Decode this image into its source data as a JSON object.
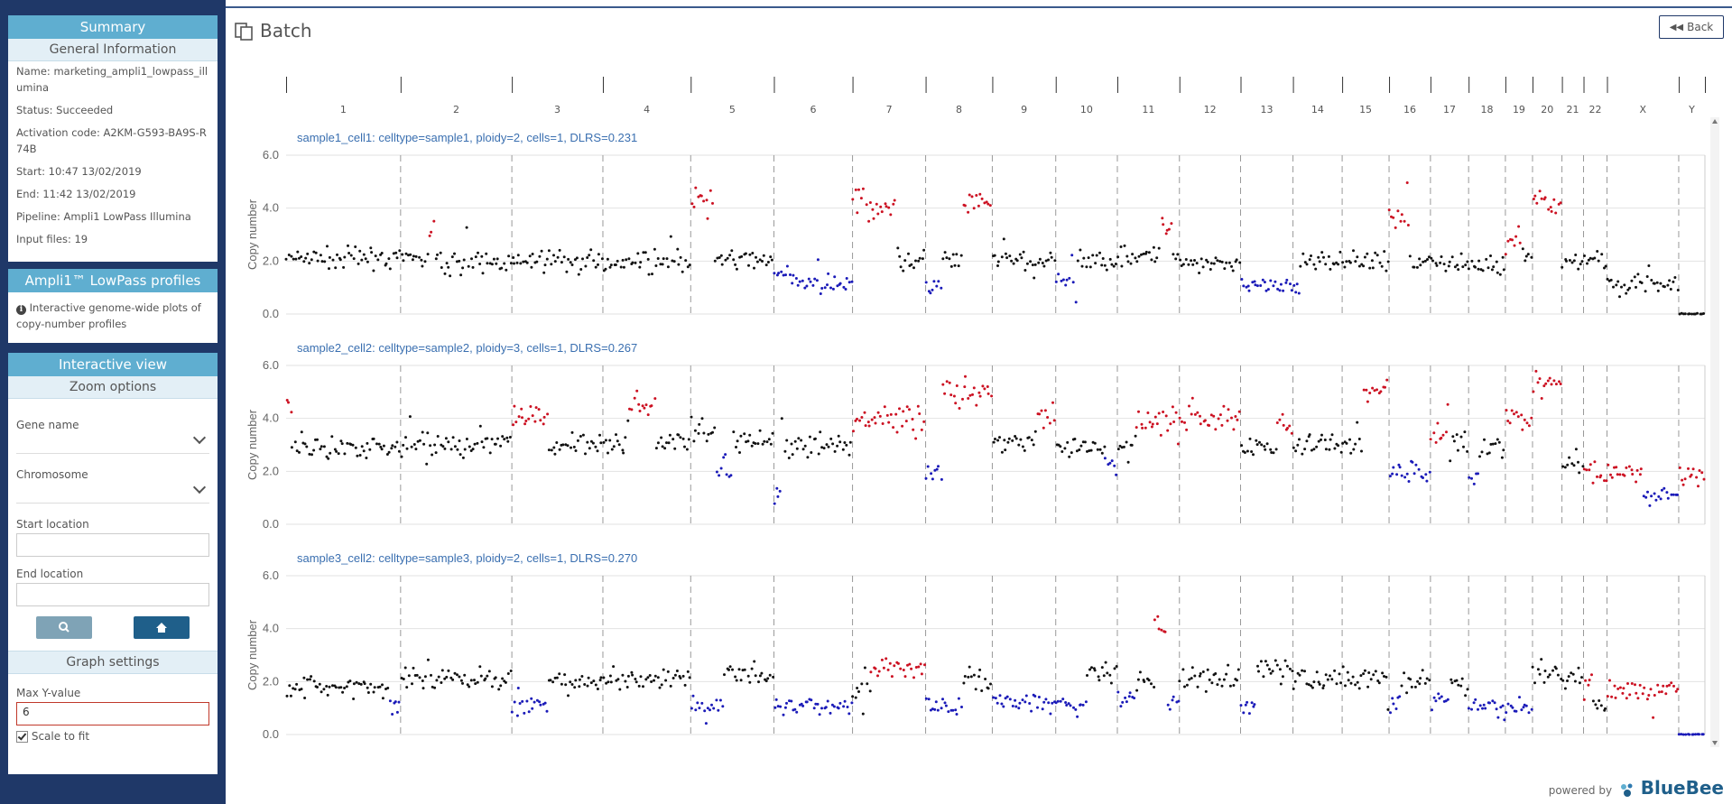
{
  "summary": {
    "title": "Summary",
    "general_title": "General Information",
    "items": [
      "Name: marketing_ampli1_lowpass_illumina",
      "Status: Succeeded",
      "Activation code: A2KM-G593-BA9S-R74B",
      "Start: 10:47 13/02/2019",
      "End: 11:42 13/02/2019",
      "Pipeline: Ampli1 LowPass Illumina",
      "Input files: 19"
    ]
  },
  "profiles": {
    "title": "Ampli1™ LowPass profiles",
    "desc": "Interactive genome-wide plots of copy-number profiles"
  },
  "interactive": {
    "title": "Interactive view",
    "zoom_title": "Zoom options",
    "gene_label": "Gene name",
    "chrom_label": "Chromosome",
    "start_label": "Start location",
    "end_label": "End location",
    "graph_title": "Graph settings",
    "maxy_label": "Max Y-value",
    "maxy_value": "6",
    "scale_label": "Scale to fit",
    "scale_checked": true
  },
  "header": {
    "title": "Batch",
    "back_label": "Back"
  },
  "footer": {
    "powered": "powered by",
    "brand": "BlueBee"
  },
  "colors": {
    "sidebar": "#1f3868",
    "panel_header": "#5faed0",
    "gain": "#cc1122",
    "loss": "#1a1ab8",
    "neutral": "#111111",
    "title_blue": "#3a6fb0"
  },
  "chart_data": {
    "type": "scatter",
    "chromosomes": [
      "1",
      "2",
      "3",
      "4",
      "5",
      "6",
      "7",
      "8",
      "9",
      "10",
      "11",
      "12",
      "13",
      "14",
      "15",
      "16",
      "17",
      "18",
      "19",
      "20",
      "21",
      "22",
      "X",
      "Y"
    ],
    "ylabel": "Copy number",
    "yticks": [
      "0.0",
      "2.0",
      "4.0",
      "6.0"
    ],
    "ylim": [
      0,
      6
    ],
    "panels": [
      {
        "title": "sample1_cell1: celltype=sample1, ploidy=2, cells=1, DLRS=0.231",
        "segments": [
          [
            "1",
            0,
            1,
            2.1,
            0
          ],
          [
            "2",
            0,
            0.25,
            2.1,
            0
          ],
          [
            "2",
            0.25,
            0.31,
            3.3,
            1
          ],
          [
            "2",
            0.31,
            1,
            1.95,
            0
          ],
          [
            "3",
            0,
            1,
            2.0,
            0
          ],
          [
            "4",
            0,
            1,
            2.0,
            0
          ],
          [
            "5",
            0,
            0.28,
            4.3,
            1
          ],
          [
            "5",
            0.28,
            1,
            2.05,
            0
          ],
          [
            "6",
            0,
            0.3,
            1.45,
            -1
          ],
          [
            "6",
            0.3,
            1,
            1.1,
            -1
          ],
          [
            "7",
            0,
            0.6,
            4.1,
            1
          ],
          [
            "7",
            0.6,
            1,
            2.0,
            0
          ],
          [
            "8",
            0,
            0.25,
            1.05,
            -1
          ],
          [
            "8",
            0.25,
            0.55,
            2.0,
            0
          ],
          [
            "8",
            0.55,
            1,
            4.2,
            1
          ],
          [
            "9",
            0,
            1,
            2.0,
            0
          ],
          [
            "10",
            0,
            0.35,
            1.2,
            -1
          ],
          [
            "10",
            0.35,
            1,
            2.0,
            0
          ],
          [
            "11",
            0,
            0.7,
            2.2,
            0
          ],
          [
            "11",
            0.7,
            0.9,
            3.2,
            1
          ],
          [
            "11",
            0.9,
            1,
            2.1,
            0
          ],
          [
            "12",
            0,
            1,
            1.95,
            0
          ],
          [
            "13",
            0,
            1,
            1.0,
            -1
          ],
          [
            "14",
            0,
            0.15,
            1.0,
            -1
          ],
          [
            "14",
            0.15,
            1,
            2.05,
            0
          ],
          [
            "15",
            0,
            1,
            2.0,
            0
          ],
          [
            "16",
            0,
            0.5,
            3.6,
            1
          ],
          [
            "16",
            0.5,
            1,
            2.0,
            0
          ],
          [
            "17",
            0,
            1,
            2.0,
            0
          ],
          [
            "18",
            0,
            1,
            1.8,
            0
          ],
          [
            "19",
            0,
            0.6,
            2.8,
            1
          ],
          [
            "19",
            0.6,
            1,
            2.2,
            0
          ],
          [
            "20",
            0,
            1,
            4.3,
            1
          ],
          [
            "21",
            0,
            1,
            1.95,
            0
          ],
          [
            "22",
            0,
            1,
            2.1,
            0
          ],
          [
            "X",
            0,
            1,
            1.1,
            0
          ],
          [
            "Y",
            0,
            1,
            0.0,
            0
          ]
        ]
      },
      {
        "title": "sample2_cell2: celltype=sample2, ploidy=3, cells=1, DLRS=0.267",
        "segments": [
          [
            "1",
            0,
            0.05,
            4.5,
            1
          ],
          [
            "1",
            0.05,
            1,
            2.9,
            0
          ],
          [
            "2",
            0,
            1,
            3.0,
            0
          ],
          [
            "3",
            0,
            0.4,
            4.1,
            1
          ],
          [
            "3",
            0.4,
            1,
            3.0,
            0
          ],
          [
            "4",
            0,
            0.3,
            3.0,
            0
          ],
          [
            "4",
            0.3,
            0.6,
            4.5,
            1
          ],
          [
            "4",
            0.6,
            1,
            3.1,
            0
          ],
          [
            "5",
            0,
            0.3,
            3.5,
            0
          ],
          [
            "5",
            0.3,
            0.5,
            2.0,
            -1
          ],
          [
            "5",
            0.5,
            1,
            3.2,
            0
          ],
          [
            "6",
            0,
            0.1,
            1.1,
            -1
          ],
          [
            "6",
            0.1,
            1,
            3.0,
            0
          ],
          [
            "7",
            0,
            1,
            4.0,
            1
          ],
          [
            "8",
            0,
            0.25,
            1.9,
            -1
          ],
          [
            "8",
            0.25,
            1,
            5.0,
            1
          ],
          [
            "9",
            0,
            0.7,
            3.1,
            0
          ],
          [
            "9",
            0.7,
            1,
            4.0,
            1
          ],
          [
            "10",
            0,
            0.8,
            2.9,
            0
          ],
          [
            "10",
            0.8,
            1,
            2.2,
            -1
          ],
          [
            "11",
            0,
            0.3,
            3.0,
            0
          ],
          [
            "11",
            0.3,
            1,
            4.0,
            1
          ],
          [
            "12",
            0,
            1,
            4.0,
            1
          ],
          [
            "13",
            0,
            0.7,
            2.9,
            0
          ],
          [
            "13",
            0.7,
            1,
            3.7,
            1
          ],
          [
            "14",
            0,
            1,
            3.0,
            0
          ],
          [
            "15",
            0,
            0.45,
            3.0,
            0
          ],
          [
            "15",
            0.45,
            1,
            5.1,
            1
          ],
          [
            "16",
            0,
            1,
            2.0,
            -1
          ],
          [
            "17",
            0,
            0.5,
            3.5,
            1
          ],
          [
            "17",
            0.5,
            1,
            3.0,
            0
          ],
          [
            "18",
            0,
            0.3,
            1.8,
            -1
          ],
          [
            "18",
            0.3,
            1,
            3.0,
            0
          ],
          [
            "19",
            0,
            1,
            3.9,
            1
          ],
          [
            "20",
            0,
            1,
            5.3,
            1
          ],
          [
            "21",
            0,
            1,
            2.4,
            0
          ],
          [
            "22",
            0,
            1,
            2.0,
            1
          ],
          [
            "X",
            0,
            0.5,
            2.0,
            1
          ],
          [
            "X",
            0.5,
            1,
            1.1,
            -1
          ],
          [
            "Y",
            0,
            1,
            1.9,
            1
          ]
        ]
      },
      {
        "title": "sample3_cell2: celltype=sample3, ploidy=2, cells=1, DLRS=0.270",
        "segments": [
          [
            "1",
            0,
            0.9,
            1.8,
            0
          ],
          [
            "1",
            0.9,
            1,
            1.1,
            -1
          ],
          [
            "2",
            0,
            1,
            2.1,
            0
          ],
          [
            "3",
            0,
            0.4,
            1.05,
            -1
          ],
          [
            "3",
            0.4,
            1,
            1.95,
            0
          ],
          [
            "4",
            0,
            1,
            2.1,
            0
          ],
          [
            "5",
            0,
            0.4,
            1.1,
            -1
          ],
          [
            "5",
            0.4,
            1,
            2.3,
            0
          ],
          [
            "6",
            0,
            1,
            1.05,
            -1
          ],
          [
            "7",
            0,
            0.25,
            1.7,
            0
          ],
          [
            "7",
            0.25,
            1,
            2.5,
            1
          ],
          [
            "8",
            0,
            0.55,
            1.1,
            -1
          ],
          [
            "8",
            0.55,
            1,
            2.1,
            0
          ],
          [
            "9",
            0,
            0.3,
            1.3,
            -1
          ],
          [
            "9",
            0.3,
            1,
            1.2,
            -1
          ],
          [
            "10",
            0,
            0.5,
            1.1,
            -1
          ],
          [
            "10",
            0.5,
            1,
            2.3,
            0
          ],
          [
            "11",
            0,
            0.3,
            1.3,
            -1
          ],
          [
            "11",
            0.3,
            0.6,
            2.0,
            0
          ],
          [
            "11",
            0.6,
            0.8,
            4.2,
            1
          ],
          [
            "11",
            0.8,
            1,
            1.3,
            -1
          ],
          [
            "12",
            0,
            1,
            2.1,
            0
          ],
          [
            "13",
            0,
            0.3,
            1.1,
            -1
          ],
          [
            "13",
            0.3,
            1,
            2.5,
            0
          ],
          [
            "14",
            0,
            1,
            2.1,
            0
          ],
          [
            "15",
            0,
            1,
            2.1,
            0
          ],
          [
            "16",
            0,
            0.3,
            1.2,
            -1
          ],
          [
            "16",
            0.3,
            1,
            2.0,
            0
          ],
          [
            "17",
            0,
            0.5,
            1.4,
            -1
          ],
          [
            "17",
            0.5,
            1,
            1.9,
            0
          ],
          [
            "18",
            0,
            1,
            1.05,
            -1
          ],
          [
            "19",
            0,
            1,
            1.0,
            -1
          ],
          [
            "20",
            0,
            1,
            2.3,
            0
          ],
          [
            "21",
            0,
            1,
            2.1,
            0
          ],
          [
            "22",
            0,
            0.4,
            2.0,
            1
          ],
          [
            "22",
            0.4,
            1,
            1.1,
            0
          ],
          [
            "X",
            0,
            1,
            1.7,
            1
          ],
          [
            "Y",
            0,
            1,
            0.0,
            -1
          ]
        ]
      }
    ]
  }
}
